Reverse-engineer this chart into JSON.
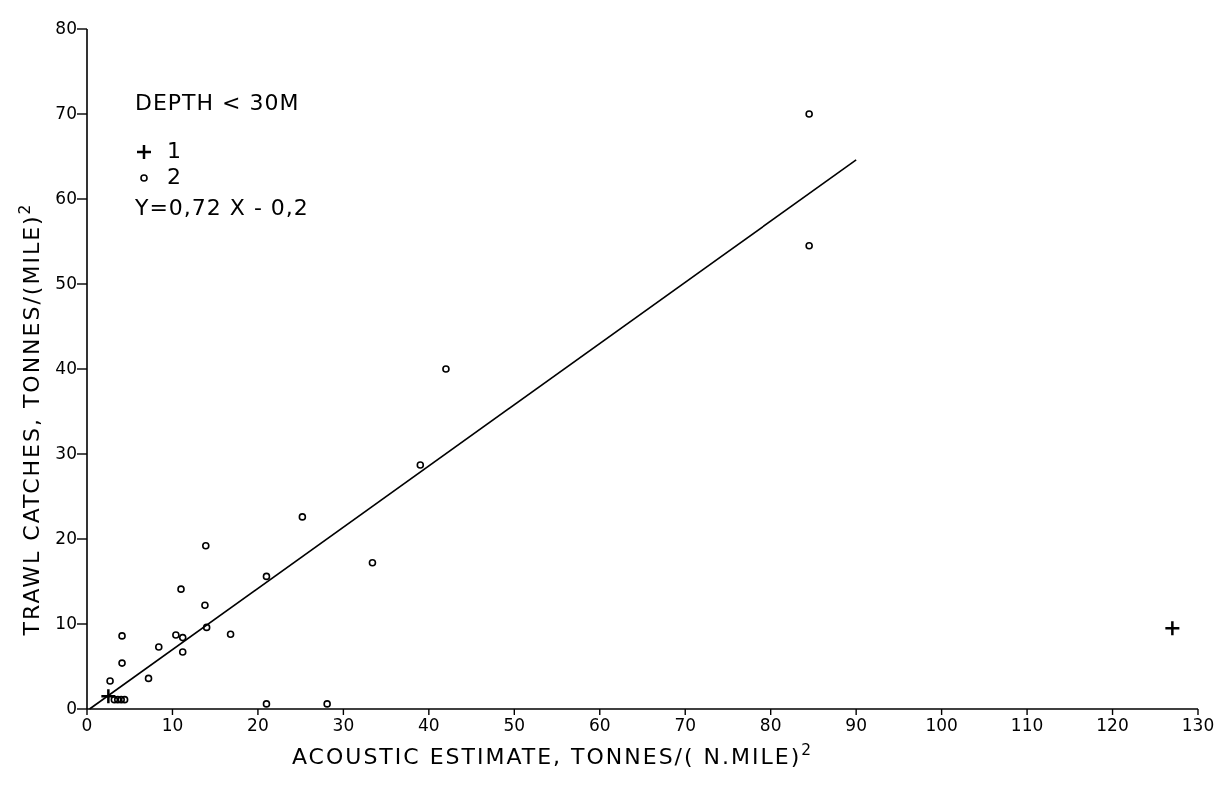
{
  "chart_data": {
    "type": "scatter",
    "xlabel": "ACOUSTIC ESTIMATE, TONNES/( N.MILE)$^{2}$",
    "ylabel": "TRAWL CATCHES, TONNES/(MILE)$^{2}$",
    "annotations": [
      "DEPTH < 30M",
      "Y=0,72 X - 0,2"
    ],
    "xlim": [
      0,
      130
    ],
    "xticks": [
      0,
      10,
      20,
      30,
      40,
      50,
      60,
      70,
      80,
      90,
      100,
      110,
      120,
      130
    ],
    "ylim": [
      0,
      80
    ],
    "yticks": [
      0,
      10,
      20,
      30,
      40,
      50,
      60,
      70,
      80
    ],
    "grid": false,
    "legend": "top left",
    "series": [
      {
        "name": "1",
        "marker": "cross",
        "color": "#000000",
        "x": [
          2.5,
          127
        ],
        "values": [
          1.5,
          9.5
        ]
      },
      {
        "name": "2",
        "marker": "circle",
        "color": "#000000",
        "x": [
          2.7,
          4.1,
          4.1,
          8.4,
          7.2,
          10.4,
          11.2,
          11.2,
          11.0,
          13.8,
          13.9,
          14.0,
          16.8,
          21.0,
          25.2,
          33.4,
          21.0,
          28.1,
          3.2,
          3.6,
          4.0,
          4.4,
          39.0,
          42.0,
          84.5,
          84.5
        ],
        "values": [
          3.3,
          8.6,
          5.4,
          7.3,
          3.6,
          8.7,
          8.4,
          6.7,
          14.1,
          12.2,
          19.2,
          9.6,
          8.8,
          15.6,
          22.6,
          17.2,
          0.6,
          0.6,
          1.1,
          1.1,
          1.1,
          1.1,
          28.7,
          40.0,
          70.0,
          54.5
        ]
      },
      {
        "type": "line",
        "marker": "none",
        "line_style": "solid",
        "color": "#000000",
        "x": [
          0.3,
          90
        ],
        "values": [
          0.0,
          64.6
        ]
      }
    ]
  }
}
